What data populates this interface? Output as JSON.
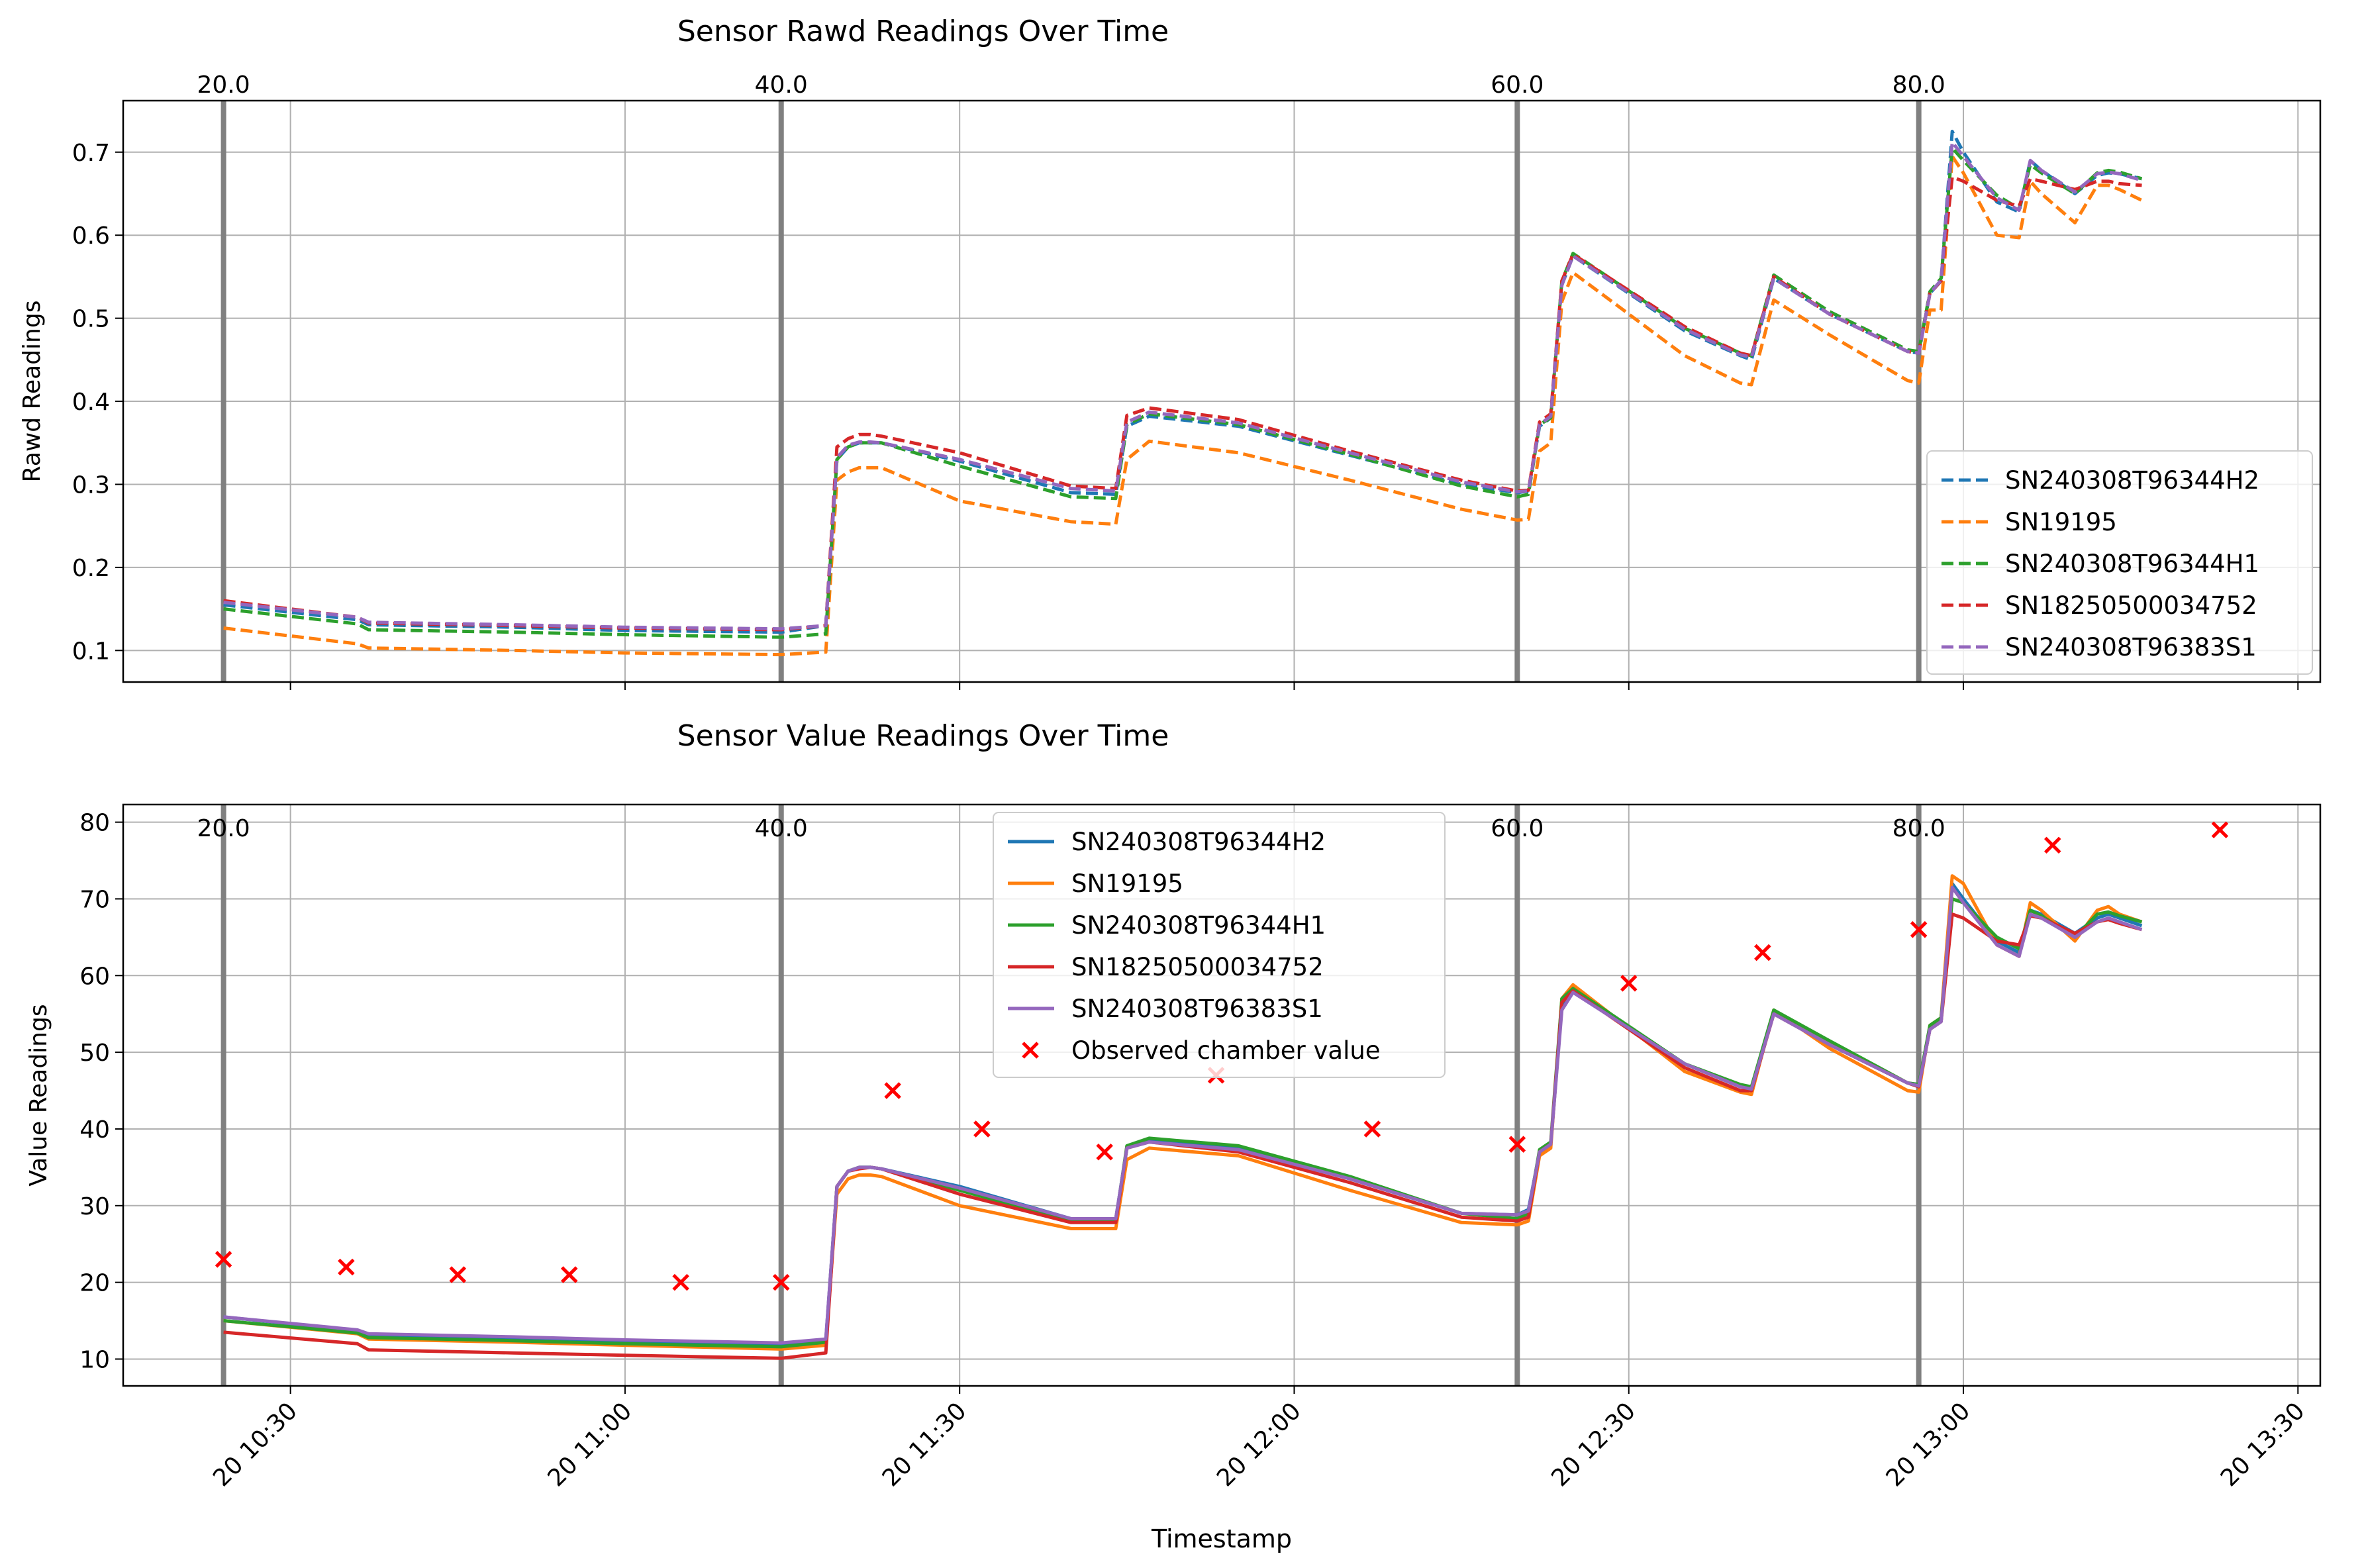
{
  "colors": {
    "SN240308T96344H2": "#1f77b4",
    "SN19195": "#ff7f0e",
    "SN240308T96344H1": "#2ca02c",
    "SN18250500034752": "#d62728",
    "SN240308T96383S1": "#9467bd",
    "observed": "#ff0000",
    "vline": "#808080",
    "grid": "#b0b0b0"
  },
  "x_axis": {
    "label": "Timestamp",
    "ticks": [
      "20 10:30",
      "20 11:00",
      "20 11:30",
      "20 12:00",
      "20 12:30",
      "20 13:00",
      "20 13:30"
    ],
    "range": [
      "10:15",
      "13:32"
    ]
  },
  "chart_data": [
    {
      "type": "line",
      "title": "Sensor Rawd Readings Over Time",
      "ylabel": "Rawd Readings",
      "xlabel": "",
      "ylim": [
        0.062,
        0.762
      ],
      "yticks": [
        0.1,
        0.2,
        0.3,
        0.4,
        0.5,
        0.6,
        0.7
      ],
      "line_style": "dashed",
      "grid": true,
      "legend": "lower right",
      "marker_lines": [
        {
          "x": "10:24",
          "label": "20.0"
        },
        {
          "x": "11:14",
          "label": "40.0"
        },
        {
          "x": "12:20",
          "label": "60.0"
        },
        {
          "x": "12:56",
          "label": "80.0"
        }
      ],
      "x": [
        "10:24",
        "10:36",
        "10:37",
        "10:50",
        "11:00",
        "11:14",
        "11:18",
        "11:19",
        "11:20",
        "11:21",
        "11:22",
        "11:23",
        "11:30",
        "11:40",
        "11:44",
        "11:45",
        "11:47",
        "11:55",
        "12:05",
        "12:15",
        "12:20",
        "12:21",
        "12:22",
        "12:23",
        "12:24",
        "12:25",
        "12:35",
        "12:40",
        "12:41",
        "12:43",
        "12:48",
        "12:55",
        "12:56",
        "12:57",
        "12:58",
        "12:59",
        "13:00",
        "13:03",
        "13:05",
        "13:06",
        "13:07",
        "13:10",
        "13:12",
        "13:13",
        "13:14",
        "13:16"
      ],
      "series": [
        {
          "name": "SN240308T96344H2",
          "values": [
            0.155,
            0.137,
            0.131,
            0.128,
            0.124,
            0.122,
            0.13,
            0.33,
            0.345,
            0.35,
            0.35,
            0.35,
            0.328,
            0.29,
            0.288,
            0.37,
            0.382,
            0.37,
            0.335,
            0.3,
            0.29,
            0.292,
            0.37,
            0.38,
            0.54,
            0.575,
            0.485,
            0.455,
            0.45,
            0.548,
            0.505,
            0.46,
            0.458,
            0.53,
            0.545,
            0.725,
            0.7,
            0.64,
            0.628,
            0.69,
            0.678,
            0.65,
            0.672,
            0.675,
            0.674,
            0.668
          ]
        },
        {
          "name": "SN19195",
          "values": [
            0.127,
            0.108,
            0.103,
            0.1,
            0.097,
            0.095,
            0.098,
            0.305,
            0.315,
            0.32,
            0.32,
            0.32,
            0.28,
            0.255,
            0.252,
            0.33,
            0.352,
            0.338,
            0.305,
            0.27,
            0.257,
            0.258,
            0.34,
            0.35,
            0.52,
            0.555,
            0.455,
            0.422,
            0.42,
            0.522,
            0.48,
            0.425,
            0.422,
            0.51,
            0.51,
            0.695,
            0.675,
            0.6,
            0.597,
            0.665,
            0.65,
            0.615,
            0.66,
            0.66,
            0.655,
            0.642
          ]
        },
        {
          "name": "SN240308T96344H1",
          "values": [
            0.15,
            0.132,
            0.125,
            0.122,
            0.119,
            0.116,
            0.12,
            0.33,
            0.345,
            0.35,
            0.35,
            0.35,
            0.322,
            0.285,
            0.283,
            0.372,
            0.385,
            0.372,
            0.336,
            0.298,
            0.285,
            0.288,
            0.372,
            0.38,
            0.545,
            0.578,
            0.488,
            0.458,
            0.455,
            0.552,
            0.508,
            0.462,
            0.46,
            0.532,
            0.548,
            0.705,
            0.69,
            0.648,
            0.632,
            0.685,
            0.675,
            0.65,
            0.675,
            0.678,
            0.676,
            0.668
          ]
        },
        {
          "name": "SN18250500034752",
          "values": [
            0.16,
            0.14,
            0.133,
            0.13,
            0.127,
            0.125,
            0.13,
            0.345,
            0.355,
            0.36,
            0.36,
            0.358,
            0.338,
            0.298,
            0.295,
            0.383,
            0.392,
            0.378,
            0.34,
            0.305,
            0.292,
            0.293,
            0.375,
            0.385,
            0.545,
            0.577,
            0.49,
            0.458,
            0.455,
            0.55,
            0.505,
            0.46,
            0.458,
            0.53,
            0.545,
            0.67,
            0.665,
            0.642,
            0.635,
            0.668,
            0.665,
            0.655,
            0.665,
            0.665,
            0.662,
            0.66
          ]
        },
        {
          "name": "SN240308T96383S1",
          "values": [
            0.158,
            0.14,
            0.134,
            0.131,
            0.128,
            0.126,
            0.13,
            0.332,
            0.347,
            0.351,
            0.351,
            0.35,
            0.33,
            0.295,
            0.292,
            0.375,
            0.387,
            0.374,
            0.338,
            0.303,
            0.291,
            0.292,
            0.372,
            0.382,
            0.54,
            0.575,
            0.487,
            0.456,
            0.453,
            0.548,
            0.505,
            0.46,
            0.458,
            0.53,
            0.546,
            0.712,
            0.695,
            0.645,
            0.63,
            0.69,
            0.678,
            0.652,
            0.674,
            0.676,
            0.674,
            0.666
          ]
        }
      ]
    },
    {
      "type": "line",
      "title": "Sensor Value Readings Over Time",
      "ylabel": "Value Readings",
      "xlabel": "Timestamp",
      "ylim": [
        6.5,
        82.3
      ],
      "yticks": [
        10,
        20,
        30,
        40,
        50,
        60,
        70,
        80
      ],
      "line_style": "solid",
      "grid": true,
      "legend": "upper center",
      "marker_lines": [
        {
          "x": "10:24",
          "label": "20.0"
        },
        {
          "x": "11:14",
          "label": "40.0"
        },
        {
          "x": "12:20",
          "label": "60.0"
        },
        {
          "x": "12:56",
          "label": "80.0"
        }
      ],
      "x": [
        "10:24",
        "10:36",
        "10:37",
        "10:50",
        "11:00",
        "11:14",
        "11:18",
        "11:19",
        "11:20",
        "11:21",
        "11:22",
        "11:23",
        "11:30",
        "11:40",
        "11:44",
        "11:45",
        "11:47",
        "11:55",
        "12:05",
        "12:15",
        "12:20",
        "12:21",
        "12:22",
        "12:23",
        "12:24",
        "12:25",
        "12:35",
        "12:40",
        "12:41",
        "12:43",
        "12:48",
        "12:55",
        "12:56",
        "12:57",
        "12:58",
        "12:59",
        "13:00",
        "13:03",
        "13:05",
        "13:06",
        "13:07",
        "13:10",
        "13:12",
        "13:13",
        "13:14",
        "13:16"
      ],
      "series": [
        {
          "name": "SN240308T96344H2",
          "values": [
            15.5,
            13.7,
            13.2,
            12.8,
            12.4,
            12.0,
            12.5,
            32.5,
            34.5,
            35.0,
            35.0,
            34.8,
            32.5,
            28.3,
            28.3,
            37.5,
            38.5,
            37.5,
            33.5,
            29.0,
            28.8,
            29.5,
            37.0,
            38.0,
            56.0,
            58.0,
            48.5,
            45.5,
            45.2,
            55.0,
            51.0,
            46.0,
            45.8,
            53.0,
            54.0,
            72.0,
            70.0,
            64.5,
            63.0,
            68.5,
            68.0,
            65.5,
            67.5,
            68.0,
            67.5,
            66.5
          ]
        },
        {
          "name": "SN19195",
          "values": [
            15.0,
            13.3,
            12.6,
            12.2,
            11.8,
            11.3,
            11.8,
            31.5,
            33.5,
            34.0,
            34.0,
            33.8,
            30.0,
            27.0,
            27.0,
            36.0,
            37.5,
            36.5,
            32.0,
            27.8,
            27.5,
            28.0,
            36.5,
            37.5,
            57.0,
            58.8,
            47.5,
            44.8,
            44.5,
            55.5,
            50.5,
            45.0,
            44.8,
            53.5,
            54.5,
            73.0,
            72.0,
            64.0,
            62.5,
            69.5,
            68.5,
            64.5,
            68.5,
            69.0,
            68.0,
            67.0
          ]
        },
        {
          "name": "SN240308T96344H1",
          "values": [
            15.0,
            13.4,
            12.8,
            12.4,
            12.0,
            11.6,
            12.2,
            32.5,
            34.5,
            35.0,
            35.0,
            34.8,
            32.0,
            28.0,
            28.0,
            37.8,
            38.8,
            37.8,
            33.8,
            29.0,
            28.3,
            29.0,
            37.3,
            38.3,
            57.0,
            58.3,
            48.5,
            45.8,
            45.5,
            55.5,
            51.5,
            46.0,
            45.8,
            53.5,
            54.5,
            70.0,
            69.5,
            65.0,
            63.5,
            68.5,
            67.8,
            65.0,
            68.0,
            68.3,
            67.8,
            67.0
          ]
        },
        {
          "name": "SN18250500034752",
          "values": [
            13.5,
            12.0,
            11.2,
            10.8,
            10.5,
            10.1,
            10.8,
            32.5,
            34.5,
            34.8,
            35.0,
            34.8,
            31.5,
            27.8,
            27.8,
            37.5,
            38.3,
            37.0,
            33.0,
            28.5,
            28.0,
            28.5,
            37.0,
            38.0,
            56.5,
            58.0,
            48.0,
            45.0,
            45.0,
            55.0,
            51.0,
            46.0,
            45.5,
            53.0,
            54.0,
            68.0,
            67.5,
            64.5,
            64.0,
            67.8,
            67.5,
            65.5,
            67.0,
            67.3,
            66.8,
            66.0
          ]
        },
        {
          "name": "SN240308T96383S1",
          "values": [
            15.5,
            13.8,
            13.3,
            12.9,
            12.5,
            12.1,
            12.6,
            32.5,
            34.5,
            35.0,
            35.0,
            34.8,
            32.3,
            28.3,
            28.3,
            37.5,
            38.3,
            37.3,
            33.5,
            29.0,
            28.8,
            29.3,
            37.0,
            38.0,
            55.5,
            57.8,
            48.5,
            45.5,
            45.2,
            55.0,
            51.0,
            46.0,
            45.6,
            53.0,
            54.0,
            71.5,
            69.5,
            64.0,
            62.5,
            68.0,
            67.5,
            65.0,
            67.0,
            67.5,
            67.0,
            66.0
          ]
        }
      ],
      "observed": {
        "name": "Observed chamber value",
        "x": [
          "10:24",
          "10:35",
          "10:45",
          "10:55",
          "11:05",
          "11:14",
          "11:24",
          "11:32",
          "11:43",
          "11:53",
          "12:07",
          "12:20",
          "12:30",
          "12:42",
          "12:56",
          "13:08",
          "13:23"
        ],
        "values": [
          23,
          22,
          21,
          21,
          20,
          20,
          45,
          40,
          37,
          47,
          40,
          38,
          59,
          63,
          66,
          77,
          79
        ]
      }
    }
  ]
}
